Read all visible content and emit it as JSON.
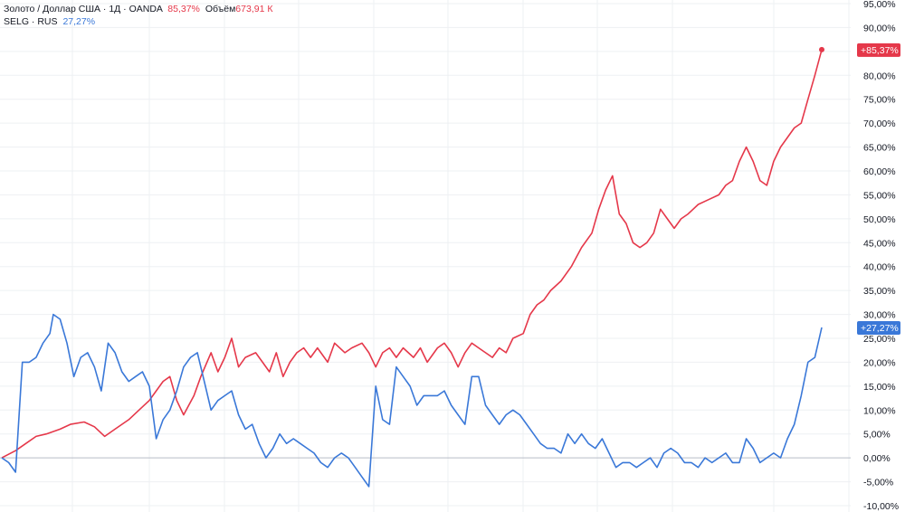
{
  "legend": {
    "gold": {
      "name": "Золото / Доллар США · 1Д · OANDA",
      "change": "85,37%",
      "volume_label": "Объём",
      "volume_value": "673,91 К"
    },
    "selg": {
      "name": "SELG · RUS",
      "change": "27,27%"
    }
  },
  "colors": {
    "gold": "#e5384a",
    "selg": "#3a78d8",
    "grid": "#eef0f3",
    "zero_line": "#b8bcc6",
    "text": "#131722"
  },
  "chart_data": {
    "type": "line",
    "title": "",
    "xlabel": "",
    "ylabel": "",
    "ylim": [
      -10,
      95
    ],
    "y_ticks": [
      "95,00%",
      "90,00%",
      "85,00%",
      "80,00%",
      "75,00%",
      "70,00%",
      "65,00%",
      "60,00%",
      "55,00%",
      "50,00%",
      "45,00%",
      "40,00%",
      "35,00%",
      "30,00%",
      "25,00%",
      "20,00%",
      "15,00%",
      "10,00%",
      "5,00%",
      "0,00%",
      "-5,00%",
      "-10,00%"
    ],
    "y_tick_values": [
      95,
      90,
      85,
      80,
      75,
      70,
      65,
      60,
      55,
      50,
      45,
      40,
      35,
      30,
      25,
      20,
      15,
      10,
      5,
      0,
      -5,
      -10
    ],
    "x_count": 250,
    "legend_position": "top-left",
    "grid": true,
    "series": [
      {
        "name": "Золото / Доллар США",
        "color": "#e5384a",
        "end_label": "+85,37%",
        "points": [
          [
            0,
            0
          ],
          [
            4,
            1.5
          ],
          [
            7,
            3
          ],
          [
            10,
            4.5
          ],
          [
            13,
            5
          ],
          [
            17,
            6
          ],
          [
            20,
            7
          ],
          [
            24,
            7.5
          ],
          [
            27,
            6.5
          ],
          [
            30,
            4.5
          ],
          [
            33,
            6
          ],
          [
            37,
            8
          ],
          [
            40,
            10
          ],
          [
            43,
            12
          ],
          [
            45,
            14
          ],
          [
            47,
            16
          ],
          [
            49,
            17
          ],
          [
            51,
            12
          ],
          [
            53,
            9
          ],
          [
            56,
            13
          ],
          [
            58,
            17
          ],
          [
            61,
            22
          ],
          [
            63,
            18
          ],
          [
            65,
            21
          ],
          [
            67,
            25
          ],
          [
            69,
            19
          ],
          [
            71,
            21
          ],
          [
            74,
            22
          ],
          [
            76,
            20
          ],
          [
            78,
            18
          ],
          [
            80,
            22
          ],
          [
            82,
            17
          ],
          [
            84,
            20
          ],
          [
            86,
            22
          ],
          [
            88,
            23
          ],
          [
            90,
            21
          ],
          [
            92,
            23
          ],
          [
            95,
            20
          ],
          [
            97,
            24
          ],
          [
            100,
            22
          ],
          [
            102,
            23
          ],
          [
            105,
            24
          ],
          [
            107,
            22
          ],
          [
            109,
            19
          ],
          [
            111,
            22
          ],
          [
            113,
            23
          ],
          [
            115,
            21
          ],
          [
            117,
            23
          ],
          [
            120,
            21
          ],
          [
            122,
            23
          ],
          [
            124,
            20
          ],
          [
            127,
            23
          ],
          [
            129,
            24
          ],
          [
            131,
            22
          ],
          [
            133,
            19
          ],
          [
            135,
            22
          ],
          [
            137,
            24
          ],
          [
            139,
            23
          ],
          [
            141,
            22
          ],
          [
            143,
            21
          ],
          [
            145,
            23
          ],
          [
            147,
            22
          ],
          [
            149,
            25
          ],
          [
            152,
            26
          ],
          [
            154,
            30
          ],
          [
            156,
            32
          ],
          [
            158,
            33
          ],
          [
            160,
            35
          ],
          [
            163,
            37
          ],
          [
            166,
            40
          ],
          [
            169,
            44
          ],
          [
            172,
            47
          ],
          [
            174,
            52
          ],
          [
            176,
            56
          ],
          [
            178,
            59
          ],
          [
            180,
            51
          ],
          [
            182,
            49
          ],
          [
            184,
            45
          ],
          [
            186,
            44
          ],
          [
            188,
            45
          ],
          [
            190,
            47
          ],
          [
            192,
            52
          ],
          [
            194,
            50
          ],
          [
            196,
            48
          ],
          [
            198,
            50
          ],
          [
            200,
            51
          ],
          [
            203,
            53
          ],
          [
            206,
            54
          ],
          [
            209,
            55
          ],
          [
            211,
            57
          ],
          [
            213,
            58
          ],
          [
            215,
            62
          ],
          [
            217,
            65
          ],
          [
            219,
            62
          ],
          [
            221,
            58
          ],
          [
            223,
            57
          ],
          [
            225,
            62
          ],
          [
            227,
            65
          ],
          [
            229,
            67
          ],
          [
            231,
            69
          ],
          [
            233,
            70
          ],
          [
            235,
            75
          ],
          [
            237,
            80
          ],
          [
            239,
            85.37
          ]
        ]
      },
      {
        "name": "SELG · RUS",
        "color": "#3a78d8",
        "end_label": "+27,27%",
        "points": [
          [
            0,
            0
          ],
          [
            2,
            -1
          ],
          [
            4,
            -3
          ],
          [
            6,
            20
          ],
          [
            8,
            20
          ],
          [
            10,
            21
          ],
          [
            12,
            24
          ],
          [
            14,
            26
          ],
          [
            15,
            30
          ],
          [
            17,
            29
          ],
          [
            19,
            24
          ],
          [
            21,
            17
          ],
          [
            23,
            21
          ],
          [
            25,
            22
          ],
          [
            27,
            19
          ],
          [
            29,
            14
          ],
          [
            31,
            24
          ],
          [
            33,
            22
          ],
          [
            35,
            18
          ],
          [
            37,
            16
          ],
          [
            39,
            17
          ],
          [
            41,
            18
          ],
          [
            43,
            15
          ],
          [
            45,
            4
          ],
          [
            47,
            8
          ],
          [
            49,
            10
          ],
          [
            51,
            14
          ],
          [
            53,
            19
          ],
          [
            55,
            21
          ],
          [
            57,
            22
          ],
          [
            59,
            16
          ],
          [
            61,
            10
          ],
          [
            63,
            12
          ],
          [
            65,
            13
          ],
          [
            67,
            14
          ],
          [
            69,
            9
          ],
          [
            71,
            6
          ],
          [
            73,
            7
          ],
          [
            75,
            3
          ],
          [
            77,
            0
          ],
          [
            79,
            2
          ],
          [
            81,
            5
          ],
          [
            83,
            3
          ],
          [
            85,
            4
          ],
          [
            87,
            3
          ],
          [
            89,
            2
          ],
          [
            91,
            1
          ],
          [
            93,
            -1
          ],
          [
            95,
            -2
          ],
          [
            97,
            0
          ],
          [
            99,
            1
          ],
          [
            101,
            0
          ],
          [
            103,
            -2
          ],
          [
            105,
            -4
          ],
          [
            107,
            -6
          ],
          [
            109,
            15
          ],
          [
            111,
            8
          ],
          [
            113,
            7
          ],
          [
            115,
            19
          ],
          [
            117,
            17
          ],
          [
            119,
            15
          ],
          [
            121,
            11
          ],
          [
            123,
            13
          ],
          [
            125,
            13
          ],
          [
            127,
            13
          ],
          [
            129,
            14
          ],
          [
            131,
            11
          ],
          [
            133,
            9
          ],
          [
            135,
            7
          ],
          [
            137,
            17
          ],
          [
            139,
            17
          ],
          [
            141,
            11
          ],
          [
            143,
            9
          ],
          [
            145,
            7
          ],
          [
            147,
            9
          ],
          [
            149,
            10
          ],
          [
            151,
            9
          ],
          [
            153,
            7
          ],
          [
            155,
            5
          ],
          [
            157,
            3
          ],
          [
            159,
            2
          ],
          [
            161,
            2
          ],
          [
            163,
            1
          ],
          [
            165,
            5
          ],
          [
            167,
            3
          ],
          [
            169,
            5
          ],
          [
            171,
            3
          ],
          [
            173,
            2
          ],
          [
            175,
            4
          ],
          [
            177,
            1
          ],
          [
            179,
            -2
          ],
          [
            181,
            -1
          ],
          [
            183,
            -1
          ],
          [
            185,
            -2
          ],
          [
            187,
            -1
          ],
          [
            189,
            0
          ],
          [
            191,
            -2
          ],
          [
            193,
            1
          ],
          [
            195,
            2
          ],
          [
            197,
            1
          ],
          [
            199,
            -1
          ],
          [
            201,
            -1
          ],
          [
            203,
            -2
          ],
          [
            205,
            0
          ],
          [
            207,
            -1
          ],
          [
            209,
            0
          ],
          [
            211,
            1
          ],
          [
            213,
            -1
          ],
          [
            215,
            -1
          ],
          [
            217,
            4
          ],
          [
            219,
            2
          ],
          [
            221,
            -1
          ],
          [
            223,
            0
          ],
          [
            225,
            1
          ],
          [
            227,
            0
          ],
          [
            229,
            4
          ],
          [
            231,
            7
          ],
          [
            233,
            13
          ],
          [
            235,
            20
          ],
          [
            237,
            21
          ],
          [
            239,
            27.27
          ]
        ]
      }
    ]
  }
}
